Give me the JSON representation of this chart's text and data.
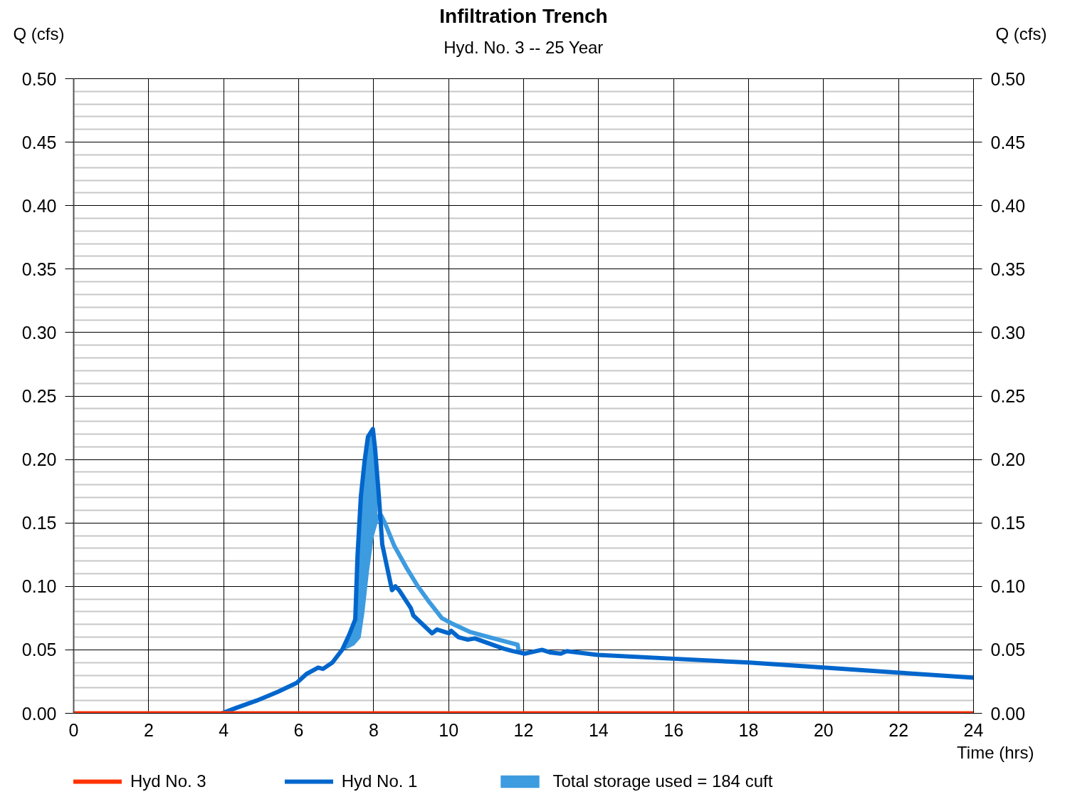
{
  "chart_data": {
    "type": "line",
    "title": "Infiltration Trench",
    "subtitle": "Hyd. No. 3 -- 25 Year",
    "xlabel": "Time (hrs)",
    "ylabel": "Q (cfs)",
    "y2label": "Q (cfs)",
    "xlim": [
      0,
      24
    ],
    "xticks": [
      0,
      2,
      4,
      6,
      8,
      10,
      12,
      14,
      16,
      18,
      20,
      22,
      24
    ],
    "ylim": [
      0,
      0.5
    ],
    "yticks": [
      {
        "value": 0,
        "label": "0.00"
      },
      0.05,
      {
        "value": 0.1,
        "label": "0.10"
      },
      0.15,
      {
        "value": 0.2,
        "label": "0.20"
      },
      0.25,
      {
        "value": 0.3,
        "label": "0.30"
      },
      0.35,
      {
        "value": 0.4,
        "label": "0.40"
      },
      0.45,
      {
        "value": 0.5,
        "label": "0.50"
      }
    ],
    "y2lim": [
      0,
      0.5
    ],
    "y2ticks": [
      {
        "value": 0,
        "label": "0.00"
      },
      0.05,
      {
        "value": 0.1,
        "label": "0.10"
      },
      0.15,
      {
        "value": 0.2,
        "label": "0.20"
      },
      0.25,
      {
        "value": 0.3,
        "label": "0.30"
      },
      0.35,
      {
        "value": 0.4,
        "label": "0.40"
      },
      0.45,
      {
        "value": 0.5,
        "label": "0.50"
      }
    ],
    "grid": true,
    "legend": "bottom",
    "series": [
      {
        "name": "Hyd No. 3",
        "color": "#ff3300",
        "x": [
          0,
          24
        ],
        "values": [
          0,
          0
        ]
      },
      {
        "name": "Hyd No. 1",
        "color": "#0066cc",
        "x": [
          3.95,
          4.31,
          4.88,
          5.45,
          5.95,
          6.21,
          6.52,
          6.65,
          6.9,
          7.16,
          7.35,
          7.51,
          7.57,
          7.66,
          7.76,
          7.85,
          7.98,
          8.04,
          8.14,
          8.23,
          8.36,
          8.49,
          8.58,
          8.68,
          8.99,
          9.06,
          9.31,
          9.56,
          9.69,
          10.01,
          10.07,
          10.26,
          10.51,
          10.7,
          11.46,
          11.71,
          12.03,
          12.49,
          12.7,
          12.99,
          13.15,
          13.97,
          16,
          18.02,
          20,
          22.02,
          24
        ],
        "values": [
          0,
          0.004,
          0.01,
          0.017,
          0.024,
          0.031,
          0.036,
          0.035,
          0.04,
          0.05,
          0.062,
          0.074,
          0.124,
          0.171,
          0.199,
          0.218,
          0.224,
          0.208,
          0.171,
          0.133,
          0.115,
          0.097,
          0.1,
          0.097,
          0.083,
          0.077,
          0.07,
          0.063,
          0.066,
          0.063,
          0.065,
          0.06,
          0.058,
          0.059,
          0.051,
          0.049,
          0.047,
          0.05,
          0.048,
          0.047,
          0.049,
          0.046,
          0.043,
          0.04,
          0.036,
          0.032,
          0.028
        ]
      },
      {
        "name": "Total storage used = 184 cuft",
        "color": "#3d9be0",
        "x": [
          7.25,
          7.45,
          7.6,
          7.7,
          7.82,
          7.95,
          8.1,
          8.2,
          8.3,
          8.55,
          8.87,
          9.18,
          9.5,
          9.82,
          10.07,
          10.58,
          11.08,
          11.58,
          11.84,
          11.87
        ],
        "values": [
          0.052,
          0.055,
          0.06,
          0.08,
          0.112,
          0.14,
          0.155,
          0.156,
          0.15,
          0.132,
          0.115,
          0.1,
          0.087,
          0.075,
          0.071,
          0.064,
          0.06,
          0.056,
          0.054,
          0.049
        ],
        "lower": [
          0.052,
          0.055,
          0.06,
          0.08,
          0.112,
          0.14,
          0.155,
          null,
          null,
          null,
          null,
          null,
          null,
          null,
          null,
          null,
          null,
          null,
          null,
          null
        ],
        "upper": [
          0.053,
          0.069,
          0.14,
          0.182,
          0.212,
          0.223,
          0.186,
          null,
          null,
          null,
          null,
          null,
          null,
          null,
          null,
          null,
          null,
          null,
          null,
          null
        ]
      }
    ]
  }
}
